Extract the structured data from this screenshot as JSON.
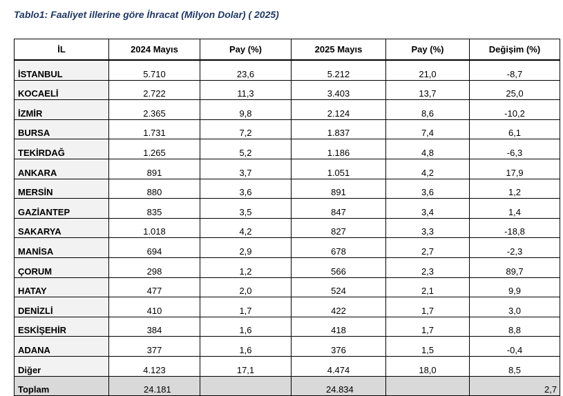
{
  "title": "Tablo1: Faaliyet illerine göre İhracat (Milyon Dolar) ( 2025)",
  "columns": [
    "İL",
    "2024 Mayıs",
    "Pay  (%)",
    "2025 Mayıs",
    "Pay  (%)",
    "Değişim (%)"
  ],
  "rows": [
    {
      "city": "İSTANBUL",
      "v2024": "5.710",
      "pay2024": "23,6",
      "v2025": "5.212",
      "pay2025": "21,0",
      "change": "-8,7"
    },
    {
      "city": "KOCAELİ",
      "v2024": "2.722",
      "pay2024": "11,3",
      "v2025": "3.403",
      "pay2025": "13,7",
      "change": "25,0"
    },
    {
      "city": "İZMİR",
      "v2024": "2.365",
      "pay2024": "9,8",
      "v2025": "2.124",
      "pay2025": "8,6",
      "change": "-10,2"
    },
    {
      "city": "BURSA",
      "v2024": "1.731",
      "pay2024": "7,2",
      "v2025": "1.837",
      "pay2025": "7,4",
      "change": "6,1"
    },
    {
      "city": "TEKİRDAĞ",
      "v2024": "1.265",
      "pay2024": "5,2",
      "v2025": "1.186",
      "pay2025": "4,8",
      "change": "-6,3"
    },
    {
      "city": "ANKARA",
      "v2024": "891",
      "pay2024": "3,7",
      "v2025": "1.051",
      "pay2025": "4,2",
      "change": "17,9"
    },
    {
      "city": "MERSİN",
      "v2024": "880",
      "pay2024": "3,6",
      "v2025": "891",
      "pay2025": "3,6",
      "change": "1,2"
    },
    {
      "city": "GAZİANTEP",
      "v2024": "835",
      "pay2024": "3,5",
      "v2025": "847",
      "pay2025": "3,4",
      "change": "1,4"
    },
    {
      "city": "SAKARYA",
      "v2024": "1.018",
      "pay2024": "4,2",
      "v2025": "827",
      "pay2025": "3,3",
      "change": "-18,8"
    },
    {
      "city": "MANİSA",
      "v2024": "694",
      "pay2024": "2,9",
      "v2025": "678",
      "pay2025": "2,7",
      "change": "-2,3"
    },
    {
      "city": "ÇORUM",
      "v2024": "298",
      "pay2024": "1,2",
      "v2025": "566",
      "pay2025": "2,3",
      "change": "89,7"
    },
    {
      "city": "HATAY",
      "v2024": "477",
      "pay2024": "2,0",
      "v2025": "524",
      "pay2025": "2,1",
      "change": "9,9"
    },
    {
      "city": "DENİZLİ",
      "v2024": "410",
      "pay2024": "1,7",
      "v2025": "422",
      "pay2025": "1,7",
      "change": "3,0"
    },
    {
      "city": "ESKİŞEHİR",
      "v2024": "384",
      "pay2024": "1,6",
      "v2025": "418",
      "pay2025": "1,7",
      "change": "8,8"
    },
    {
      "city": "ADANA",
      "v2024": "377",
      "pay2024": "1,6",
      "v2025": "376",
      "pay2025": "1,5",
      "change": "-0,4"
    },
    {
      "city": "Diğer",
      "v2024": "4.123",
      "pay2024": "17,1",
      "v2025": "4.474",
      "pay2025": "18,0",
      "change": "8,5"
    }
  ],
  "total": {
    "label": "Toplam",
    "v2024": "24.181",
    "pay2024": "",
    "v2025": "24.834",
    "pay2025": "",
    "change": "2,7"
  }
}
